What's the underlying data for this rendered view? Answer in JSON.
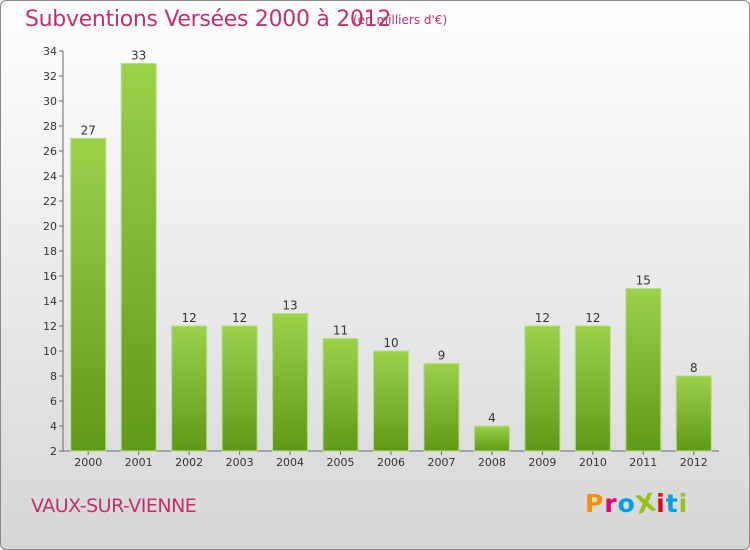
{
  "chart_data": {
    "type": "bar",
    "title": "Subventions Versées 2000 à 2012",
    "subtitle": "(en milliers d'€)",
    "categories": [
      "2000",
      "2001",
      "2002",
      "2003",
      "2004",
      "2005",
      "2006",
      "2007",
      "2008",
      "2009",
      "2010",
      "2011",
      "2012"
    ],
    "values": [
      27,
      33,
      12,
      12,
      13,
      11,
      10,
      9,
      4,
      12,
      12,
      15,
      8
    ],
    "xlabel": "",
    "ylabel": "",
    "ylim": [
      2,
      34
    ],
    "yticks": [
      2,
      4,
      6,
      8,
      10,
      12,
      14,
      16,
      18,
      20,
      22,
      24,
      26,
      28,
      30,
      32,
      34
    ],
    "grid": false,
    "bar_color": "#7fbb2e"
  },
  "footer": {
    "place_name": "VAUX-SUR-VIENNE",
    "logo_text": "ProXiti"
  },
  "colors": {
    "title": "#c0306e",
    "logo": [
      "#f39200",
      "#e6007e",
      "#009fe3",
      "#95c11f",
      "#e30613",
      "#009fe3",
      "#95c11f"
    ]
  }
}
